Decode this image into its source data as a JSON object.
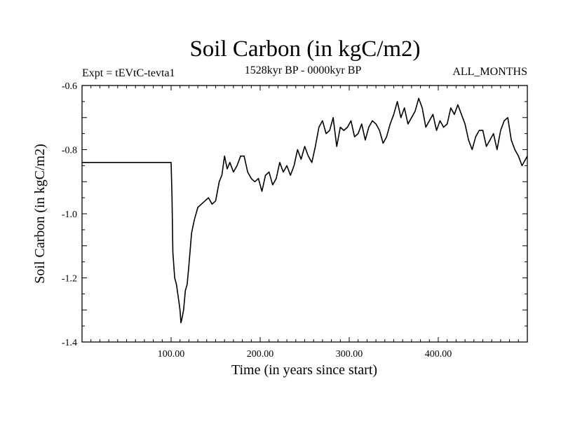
{
  "chart_data": {
    "type": "line",
    "title": "Soil Carbon (in kgC/m2)",
    "subtitle_left": "Expt = tEVtC-tevta1",
    "subtitle_center": "1528kyr BP - 0000kyr BP",
    "subtitle_right": "ALL_MONTHS",
    "xlabel": "Time (in years since start)",
    "ylabel": "Soil Carbon (in kgC/m2)",
    "xlim": [
      0,
      500
    ],
    "ylim": [
      -1.4,
      -0.6
    ],
    "x_ticks": [
      {
        "value": 100,
        "label": "100.00"
      },
      {
        "value": 200,
        "label": "200.00"
      },
      {
        "value": 300,
        "label": "300.00"
      },
      {
        "value": 400,
        "label": "400.00"
      }
    ],
    "y_ticks": [
      {
        "value": -1.4,
        "label": "-1.4"
      },
      {
        "value": -1.2,
        "label": "-1.2"
      },
      {
        "value": -1.0,
        "label": "-1.0"
      },
      {
        "value": -0.8,
        "label": "-0.8"
      },
      {
        "value": -0.6,
        "label": "-0.6"
      }
    ],
    "series": [
      {
        "name": "Soil Carbon",
        "color": "#000000",
        "x": [
          0,
          100,
          101,
          102,
          104,
          106,
          108,
          110,
          111,
          112,
          114,
          116,
          118,
          120,
          123,
          126,
          130,
          134,
          138,
          142,
          146,
          150,
          154,
          157,
          160,
          163,
          166,
          170,
          174,
          178,
          182,
          186,
          190,
          194,
          198,
          202,
          206,
          210,
          214,
          218,
          222,
          226,
          230,
          234,
          238,
          242,
          246,
          250,
          254,
          258,
          262,
          266,
          270,
          274,
          278,
          282,
          286,
          290,
          294,
          298,
          302,
          306,
          310,
          314,
          318,
          322,
          326,
          330,
          334,
          338,
          342,
          346,
          350,
          354,
          358,
          362,
          366,
          370,
          374,
          378,
          382,
          386,
          390,
          394,
          398,
          402,
          406,
          410,
          414,
          418,
          422,
          426,
          430,
          434,
          438,
          442,
          446,
          450,
          454,
          458,
          462,
          466,
          470,
          474,
          478,
          482,
          486,
          490,
          494,
          498,
          500
        ],
        "y": [
          -0.84,
          -0.84,
          -0.95,
          -1.12,
          -1.2,
          -1.22,
          -1.26,
          -1.3,
          -1.34,
          -1.33,
          -1.3,
          -1.24,
          -1.22,
          -1.16,
          -1.06,
          -1.02,
          -0.98,
          -0.97,
          -0.96,
          -0.95,
          -0.97,
          -0.96,
          -0.9,
          -0.88,
          -0.82,
          -0.86,
          -0.84,
          -0.87,
          -0.85,
          -0.82,
          -0.82,
          -0.87,
          -0.89,
          -0.9,
          -0.89,
          -0.93,
          -0.88,
          -0.87,
          -0.91,
          -0.89,
          -0.84,
          -0.87,
          -0.85,
          -0.88,
          -0.85,
          -0.8,
          -0.83,
          -0.79,
          -0.82,
          -0.84,
          -0.79,
          -0.73,
          -0.71,
          -0.75,
          -0.74,
          -0.7,
          -0.79,
          -0.73,
          -0.74,
          -0.73,
          -0.71,
          -0.76,
          -0.75,
          -0.72,
          -0.77,
          -0.73,
          -0.71,
          -0.72,
          -0.74,
          -0.78,
          -0.76,
          -0.72,
          -0.69,
          -0.65,
          -0.7,
          -0.67,
          -0.72,
          -0.7,
          -0.68,
          -0.64,
          -0.67,
          -0.73,
          -0.71,
          -0.69,
          -0.74,
          -0.71,
          -0.73,
          -0.72,
          -0.67,
          -0.69,
          -0.66,
          -0.69,
          -0.72,
          -0.77,
          -0.8,
          -0.76,
          -0.74,
          -0.74,
          -0.79,
          -0.77,
          -0.75,
          -0.8,
          -0.74,
          -0.71,
          -0.7,
          -0.77,
          -0.8,
          -0.82,
          -0.85,
          -0.83,
          -0.82
        ]
      }
    ]
  }
}
